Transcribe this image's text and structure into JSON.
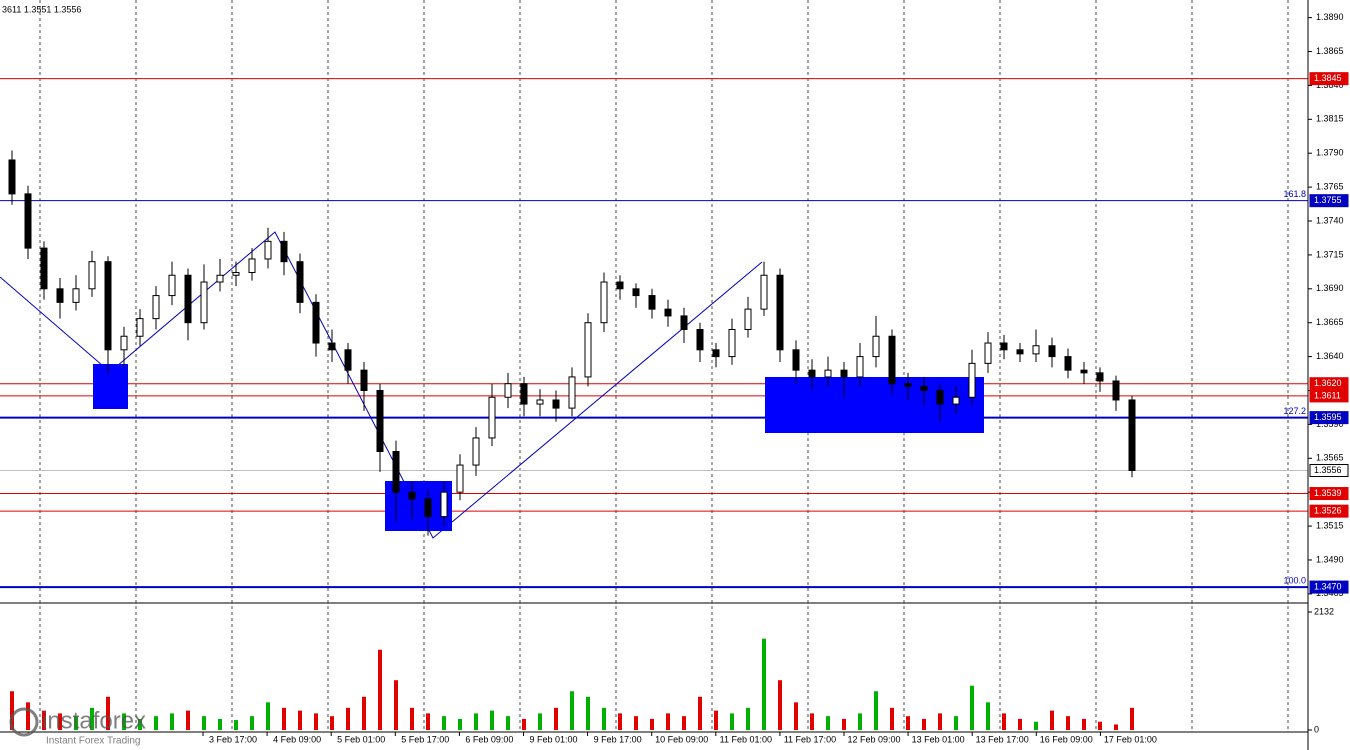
{
  "chart_data": {
    "type": "candlestick",
    "header": "3611 1.3551 1.3556",
    "ylim": [
      1.3459,
      1.3903
    ],
    "yticks": [
      {
        "value": 1.389,
        "label": "1.3890"
      },
      {
        "value": 1.3865,
        "label": "1.3865"
      },
      {
        "value": 1.384,
        "label": "1.3840"
      },
      {
        "value": 1.3815,
        "label": "1.3815"
      },
      {
        "value": 1.379,
        "label": "1.3790"
      },
      {
        "value": 1.3765,
        "label": "1.3765"
      },
      {
        "value": 1.374,
        "label": "1.3740"
      },
      {
        "value": 1.3715,
        "label": "1.3715"
      },
      {
        "value": 1.369,
        "label": "1.3690"
      },
      {
        "value": 1.3665,
        "label": "1.3665"
      },
      {
        "value": 1.364,
        "label": "1.3640"
      },
      {
        "value": 1.3615,
        "label": "1.3615"
      },
      {
        "value": 1.359,
        "label": "1.3590"
      },
      {
        "value": 1.3565,
        "label": "1.3565"
      },
      {
        "value": 1.354,
        "label": "1.3540"
      },
      {
        "value": 1.3515,
        "label": "1.3515"
      },
      {
        "value": 1.349,
        "label": "1.3490"
      },
      {
        "value": 1.3465,
        "label": "1.3465"
      }
    ],
    "grid": true,
    "up_color": "#ffffff",
    "down_color": "#000000",
    "candles": [
      [
        1.3785,
        1.3792,
        1.3752,
        1.376
      ],
      [
        1.376,
        1.3766,
        1.3712,
        1.372
      ],
      [
        1.372,
        1.3725,
        1.3682,
        1.369
      ],
      [
        1.369,
        1.3698,
        1.3668,
        1.368
      ],
      [
        1.368,
        1.37,
        1.3674,
        1.369
      ],
      [
        1.369,
        1.3718,
        1.3684,
        1.371
      ],
      [
        1.371,
        1.3714,
        1.3628,
        1.3645
      ],
      [
        1.3645,
        1.3662,
        1.3632,
        1.3655
      ],
      [
        1.3655,
        1.3675,
        1.3648,
        1.3668
      ],
      [
        1.3668,
        1.3692,
        1.366,
        1.3685
      ],
      [
        1.3685,
        1.371,
        1.3678,
        1.37
      ],
      [
        1.37,
        1.3705,
        1.3652,
        1.3665
      ],
      [
        1.3665,
        1.3708,
        1.366,
        1.3695
      ],
      [
        1.3695,
        1.3712,
        1.3688,
        1.37
      ],
      [
        1.37,
        1.371,
        1.3692,
        1.3702
      ],
      [
        1.3702,
        1.372,
        1.3696,
        1.3712
      ],
      [
        1.3712,
        1.3735,
        1.3705,
        1.3725
      ],
      [
        1.3725,
        1.3732,
        1.37,
        1.371
      ],
      [
        1.371,
        1.3716,
        1.3672,
        1.368
      ],
      [
        1.368,
        1.3686,
        1.364,
        1.365
      ],
      [
        1.365,
        1.366,
        1.3636,
        1.3645
      ],
      [
        1.3645,
        1.365,
        1.362,
        1.363
      ],
      [
        1.363,
        1.3636,
        1.36,
        1.3615
      ],
      [
        1.3615,
        1.362,
        1.3555,
        1.357
      ],
      [
        1.357,
        1.3578,
        1.3518,
        1.354
      ],
      [
        1.354,
        1.3548,
        1.352,
        1.3535
      ],
      [
        1.3535,
        1.3542,
        1.3508,
        1.3522
      ],
      [
        1.3522,
        1.3548,
        1.3515,
        1.354
      ],
      [
        1.354,
        1.3568,
        1.3534,
        1.356
      ],
      [
        1.356,
        1.3588,
        1.3552,
        1.358
      ],
      [
        1.358,
        1.362,
        1.3574,
        1.361
      ],
      [
        1.361,
        1.3628,
        1.3602,
        1.362
      ],
      [
        1.362,
        1.3625,
        1.3596,
        1.3605
      ],
      [
        1.3605,
        1.3616,
        1.3596,
        1.3608
      ],
      [
        1.3608,
        1.3615,
        1.3592,
        1.3602
      ],
      [
        1.3602,
        1.3632,
        1.3596,
        1.3625
      ],
      [
        1.3625,
        1.3672,
        1.3618,
        1.3665
      ],
      [
        1.3665,
        1.3702,
        1.3658,
        1.3695
      ],
      [
        1.3695,
        1.37,
        1.3682,
        1.369
      ],
      [
        1.369,
        1.3694,
        1.3676,
        1.3685
      ],
      [
        1.3685,
        1.369,
        1.3668,
        1.3675
      ],
      [
        1.3675,
        1.3682,
        1.3662,
        1.367
      ],
      [
        1.367,
        1.3676,
        1.365,
        1.366
      ],
      [
        1.366,
        1.3665,
        1.3636,
        1.3645
      ],
      [
        1.3645,
        1.365,
        1.3632,
        1.364
      ],
      [
        1.364,
        1.3668,
        1.3634,
        1.366
      ],
      [
        1.366,
        1.3684,
        1.3654,
        1.3675
      ],
      [
        1.3675,
        1.371,
        1.367,
        1.37
      ],
      [
        1.37,
        1.3705,
        1.3636,
        1.3645
      ],
      [
        1.3645,
        1.3652,
        1.362,
        1.363
      ],
      [
        1.363,
        1.3638,
        1.3616,
        1.3625
      ],
      [
        1.3625,
        1.364,
        1.3618,
        1.363
      ],
      [
        1.363,
        1.3636,
        1.361,
        1.3625
      ],
      [
        1.3625,
        1.365,
        1.3618,
        1.364
      ],
      [
        1.364,
        1.367,
        1.3632,
        1.3655
      ],
      [
        1.3655,
        1.366,
        1.3612,
        1.362
      ],
      [
        1.362,
        1.3628,
        1.3608,
        1.3618
      ],
      [
        1.3618,
        1.3625,
        1.3604,
        1.3615
      ],
      [
        1.3615,
        1.362,
        1.3592,
        1.3605
      ],
      [
        1.3605,
        1.3618,
        1.3598,
        1.361
      ],
      [
        1.361,
        1.3645,
        1.3604,
        1.3635
      ],
      [
        1.3635,
        1.3658,
        1.3628,
        1.365
      ],
      [
        1.365,
        1.3656,
        1.3638,
        1.3645
      ],
      [
        1.3645,
        1.365,
        1.3636,
        1.3642
      ],
      [
        1.3642,
        1.366,
        1.3636,
        1.3648
      ],
      [
        1.3648,
        1.3654,
        1.3632,
        1.364
      ],
      [
        1.364,
        1.3646,
        1.3624,
        1.363
      ],
      [
        1.363,
        1.3636,
        1.362,
        1.3628
      ],
      [
        1.3628,
        1.3632,
        1.3614,
        1.3622
      ],
      [
        1.3622,
        1.3626,
        1.36,
        1.3608
      ],
      [
        1.3608,
        1.3611,
        1.3551,
        1.3556
      ]
    ],
    "volume": {
      "ylim": [
        0,
        2132
      ],
      "yticks": [
        2132,
        0
      ],
      "up_color": "#00b000",
      "down_color": "#e00000",
      "values": [
        700,
        500,
        350,
        300,
        250,
        400,
        600,
        300,
        200,
        250,
        300,
        350,
        250,
        200,
        180,
        250,
        500,
        400,
        350,
        300,
        250,
        400,
        600,
        1450,
        900,
        400,
        300,
        250,
        200,
        300,
        350,
        250,
        200,
        300,
        400,
        700,
        600,
        400,
        300,
        250,
        200,
        300,
        250,
        600,
        350,
        300,
        400,
        1650,
        900,
        500,
        300,
        250,
        200,
        300,
        700,
        400,
        250,
        200,
        300,
        250,
        800,
        500,
        300,
        200,
        150,
        350,
        250,
        200,
        150,
        100,
        400
      ]
    },
    "levels": [
      {
        "value": 1.3845,
        "label": "1.3845",
        "color": "#e00000",
        "width": 1
      },
      {
        "value": 1.3755,
        "label": "1.3755",
        "color": "#0000c0",
        "width": 1,
        "fib": "161.8"
      },
      {
        "value": 1.362,
        "label": "1.3620",
        "color": "#e00000",
        "width": 1
      },
      {
        "value": 1.3611,
        "label": "1.3611",
        "color": "#e00000",
        "width": 1
      },
      {
        "value": 1.3595,
        "label": "1.3595",
        "color": "#0000c0",
        "width": 2,
        "fib": "127.2"
      },
      {
        "value": 1.3556,
        "label": "1.3556",
        "color": "#c0c0c0",
        "width": 1
      },
      {
        "value": 1.3539,
        "label": "1.3539",
        "color": "#e00000",
        "width": 1
      },
      {
        "value": 1.3526,
        "label": "1.3526",
        "color": "#e00000",
        "width": 1
      },
      {
        "value": 1.347,
        "label": "1.3470",
        "color": "#0000c0",
        "width": 2,
        "fib": "100.0"
      }
    ],
    "xlabels": [
      "3 Feb 17:00",
      "4 Feb 09:00",
      "5 Feb 01:00",
      "5 Feb 17:00",
      "6 Feb 09:00",
      "9 Feb 01:00",
      "9 Feb 17:00",
      "10 Feb 09:00",
      "11 Feb 01:00",
      "11 Feb 17:00",
      "12 Feb 09:00",
      "13 Feb 01:00",
      "13 Feb 17:00",
      "16 Feb 09:00",
      "17 Feb 01:00"
    ]
  },
  "logo": {
    "name": "instaforex",
    "tagline": "Instant Forex Trading"
  }
}
